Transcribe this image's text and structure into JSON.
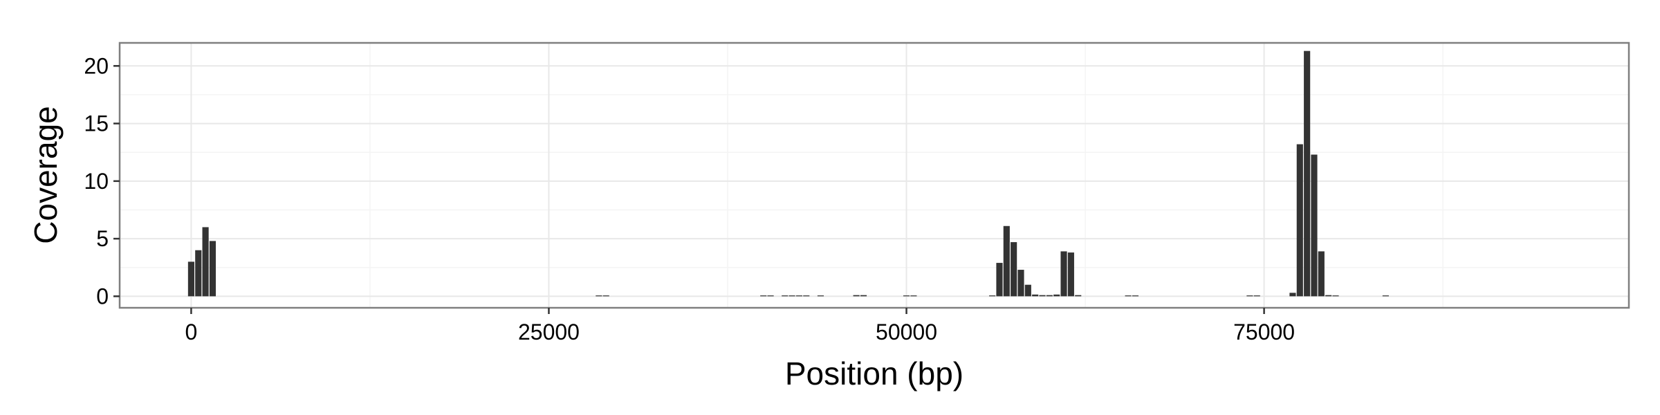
{
  "chart_data": {
    "type": "bar",
    "title": "",
    "xlabel": "Position (bp)",
    "ylabel": "Coverage",
    "xlim": [
      -5000,
      100500
    ],
    "ylim": [
      -1,
      22
    ],
    "x_ticks": [
      0,
      25000,
      50000,
      75000
    ],
    "x_tick_labels": [
      "0",
      "25000",
      "50000",
      "75000"
    ],
    "y_ticks": [
      0,
      5,
      10,
      15,
      20
    ],
    "y_tick_labels": [
      "0",
      "5",
      "10",
      "15",
      "20"
    ],
    "grid": true,
    "legend": "none",
    "bin_width": 500,
    "colors": {
      "bar": "#333333",
      "panel_border": "#7f7f7f",
      "grid_major": "#e8e8e8",
      "grid_minor": "#f4f4f4"
    },
    "series": [
      {
        "x": [
          0,
          500,
          1000,
          1500,
          28500,
          29000,
          40000,
          40500,
          41500,
          42000,
          42500,
          43000,
          44000,
          46500,
          47000,
          50000,
          50500,
          56000,
          56500,
          57000,
          57500,
          58000,
          58500,
          59000,
          59500,
          60000,
          60500,
          61000,
          61500,
          62000,
          65500,
          66000,
          74000,
          74500,
          77000,
          77500,
          78000,
          78500,
          79000,
          79500,
          80000,
          83500
        ],
        "values": [
          3.0,
          4.0,
          6.0,
          4.8,
          0.05,
          0.05,
          0.05,
          0.05,
          0.05,
          0.05,
          0.05,
          0.05,
          0.05,
          0.1,
          0.1,
          0.05,
          0.05,
          0.05,
          2.9,
          6.1,
          4.7,
          2.3,
          1.0,
          0.15,
          0.1,
          0.1,
          0.15,
          3.9,
          3.8,
          0.1,
          0.05,
          0.05,
          0.05,
          0.05,
          0.3,
          13.2,
          21.3,
          12.3,
          3.9,
          0.1,
          0.05,
          0.05
        ]
      }
    ]
  }
}
